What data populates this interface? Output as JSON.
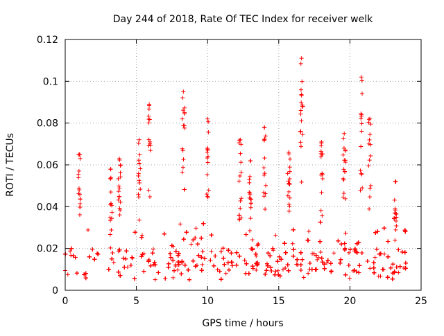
{
  "chart_data": {
    "type": "scatter",
    "title": "Day 244 of 2018, Rate Of TEC Index for receiver welk",
    "xlabel": "GPS time / hours",
    "ylabel": "ROTI / TECUs",
    "xlim": [
      0,
      25
    ],
    "ylim": [
      0,
      0.12
    ],
    "x_ticks": [
      0,
      5,
      10,
      15,
      20,
      25
    ],
    "x_tick_labels": [
      "0",
      "5",
      "10",
      "15",
      "20",
      "25"
    ],
    "y_ticks": [
      0,
      0.02,
      0.04,
      0.06,
      0.08,
      0.1,
      0.12
    ],
    "y_tick_labels": [
      "0",
      "0.02",
      "0.04",
      "0.06",
      "0.08",
      "0.1",
      "0.12"
    ],
    "grid": true,
    "marker": "plus",
    "color": "#ff0000",
    "x_range_hours": [
      0,
      24
    ],
    "baseline_band": [
      0.005,
      0.02
    ],
    "peaks": [
      {
        "x": 1.0,
        "y": 0.065
      },
      {
        "x": 3.2,
        "y": 0.058
      },
      {
        "x": 3.8,
        "y": 0.063
      },
      {
        "x": 5.2,
        "y": 0.072
      },
      {
        "x": 5.9,
        "y": 0.089
      },
      {
        "x": 8.3,
        "y": 0.095
      },
      {
        "x": 10.0,
        "y": 0.082
      },
      {
        "x": 12.3,
        "y": 0.072
      },
      {
        "x": 13.0,
        "y": 0.062
      },
      {
        "x": 14.0,
        "y": 0.078
      },
      {
        "x": 15.7,
        "y": 0.066
      },
      {
        "x": 16.6,
        "y": 0.111
      },
      {
        "x": 18.0,
        "y": 0.071
      },
      {
        "x": 19.6,
        "y": 0.075
      },
      {
        "x": 20.8,
        "y": 0.102
      },
      {
        "x": 21.4,
        "y": 0.082
      },
      {
        "x": 23.2,
        "y": 0.052
      }
    ]
  }
}
